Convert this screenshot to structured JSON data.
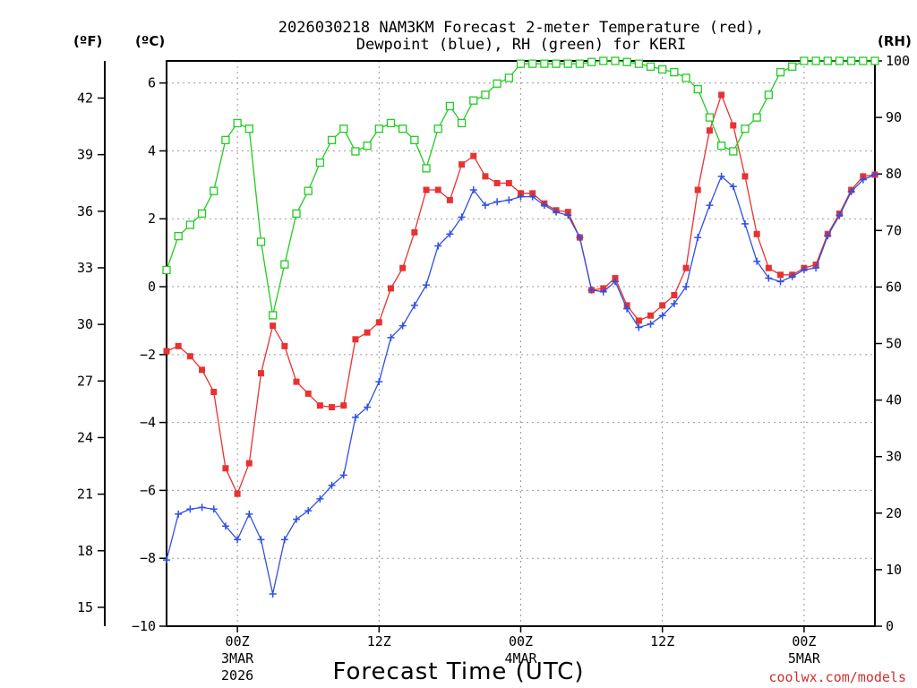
{
  "chart_data": {
    "type": "line",
    "title_line1": "2026030218 NAM3KM Forecast 2-meter Temperature (red),",
    "title_line2": "Dewpoint (blue), RH (green) for KERI",
    "xlabel": "Forecast Time (UTC)",
    "credit": "coolwx.com/models",
    "units": {
      "f": "(ºF)",
      "c": "(ºC)",
      "rh": "(RH)"
    },
    "x_hours_range": [
      -6,
      54
    ],
    "x_ticks": [
      {
        "hour": 0,
        "label": "00Z",
        "date": "3MAR",
        "year": "2026"
      },
      {
        "hour": 12,
        "label": "12Z",
        "date": "",
        "year": ""
      },
      {
        "hour": 24,
        "label": "00Z",
        "date": "4MAR",
        "year": ""
      },
      {
        "hour": 36,
        "label": "12Z",
        "date": "",
        "year": ""
      },
      {
        "hour": 48,
        "label": "00Z",
        "date": "5MAR",
        "year": ""
      }
    ],
    "c_axis": {
      "ylim": [
        -10,
        6.65
      ],
      "ticks": [
        "-10",
        "-8",
        "-6",
        "-4",
        "-2",
        "0",
        "2",
        "4",
        "6"
      ]
    },
    "f_axis": {
      "ticks": [
        "15",
        "18",
        "21",
        "24",
        "27",
        "30",
        "33",
        "36",
        "39",
        "42"
      ]
    },
    "rh_axis": {
      "ylim": [
        0,
        100
      ],
      "ticks": [
        "0",
        "10",
        "20",
        "30",
        "40",
        "50",
        "60",
        "70",
        "80",
        "90",
        "100"
      ]
    },
    "grid": true,
    "series": [
      {
        "name": "Temperature",
        "color": "#e83232",
        "marker": "filled-square",
        "x": [
          -6,
          -5,
          -4,
          -3,
          -2,
          -1,
          0,
          1,
          2,
          3,
          4,
          5,
          6,
          7,
          8,
          9,
          10,
          11,
          12,
          13,
          14,
          15,
          16,
          17,
          18,
          19,
          20,
          21,
          22,
          23,
          24,
          25,
          26,
          27,
          28,
          29,
          30,
          31,
          32,
          33,
          34,
          35,
          36,
          37,
          38,
          39,
          40,
          41,
          42,
          43,
          44,
          45,
          46,
          47,
          48,
          49,
          50,
          51,
          52,
          53,
          54
        ],
        "values": [
          -1.9,
          -1.75,
          -2.05,
          -2.45,
          -3.1,
          -5.35,
          -6.1,
          -5.2,
          -2.55,
          -1.15,
          -1.75,
          -2.8,
          -3.15,
          -3.5,
          -3.55,
          -3.5,
          -1.55,
          -1.35,
          -1.05,
          -0.05,
          0.55,
          1.6,
          2.85,
          2.85,
          2.55,
          3.6,
          3.85,
          3.25,
          3.05,
          3.05,
          2.75,
          2.75,
          2.45,
          2.25,
          2.2,
          1.45,
          -0.1,
          -0.05,
          0.25,
          -0.55,
          -1.0,
          -0.85,
          -0.55,
          -0.25,
          0.55,
          2.85,
          4.6,
          5.65,
          4.75,
          3.25,
          1.55,
          0.55,
          0.35,
          0.35,
          0.55,
          0.65,
          1.55,
          2.15,
          2.85,
          3.25,
          3.3
        ]
      },
      {
        "name": "Dewpoint",
        "color": "#3050e0",
        "marker": "plus",
        "x": [
          -6,
          -5,
          -4,
          -3,
          -2,
          -1,
          0,
          1,
          2,
          3,
          4,
          5,
          6,
          7,
          8,
          9,
          10,
          11,
          12,
          13,
          14,
          15,
          16,
          17,
          18,
          19,
          20,
          21,
          22,
          23,
          24,
          25,
          26,
          27,
          28,
          29,
          30,
          31,
          32,
          33,
          34,
          35,
          36,
          37,
          38,
          39,
          40,
          41,
          42,
          43,
          44,
          45,
          46,
          47,
          48,
          49,
          50,
          51,
          52,
          53,
          54
        ],
        "values": [
          -8.05,
          -6.7,
          -6.55,
          -6.5,
          -6.55,
          -7.05,
          -7.45,
          -6.7,
          -7.45,
          -9.05,
          -7.45,
          -6.85,
          -6.6,
          -6.25,
          -5.85,
          -5.55,
          -3.85,
          -3.55,
          -2.8,
          -1.5,
          -1.15,
          -0.55,
          0.05,
          1.2,
          1.55,
          2.05,
          2.85,
          2.4,
          2.5,
          2.55,
          2.65,
          2.65,
          2.4,
          2.2,
          2.1,
          1.45,
          -0.1,
          -0.15,
          0.15,
          -0.65,
          -1.2,
          -1.1,
          -0.85,
          -0.5,
          0.0,
          1.45,
          2.4,
          3.25,
          2.95,
          1.85,
          0.75,
          0.25,
          0.15,
          0.3,
          0.5,
          0.55,
          1.5,
          2.1,
          2.8,
          3.15,
          3.3
        ]
      },
      {
        "name": "RH",
        "color": "#22cc22",
        "marker": "open-square",
        "axis": "rh",
        "x": [
          -6,
          -5,
          -4,
          -3,
          -2,
          -1,
          0,
          1,
          2,
          3,
          4,
          5,
          6,
          7,
          8,
          9,
          10,
          11,
          12,
          13,
          14,
          15,
          16,
          17,
          18,
          19,
          20,
          21,
          22,
          23,
          24,
          25,
          26,
          27,
          28,
          29,
          30,
          31,
          32,
          33,
          34,
          35,
          36,
          37,
          38,
          39,
          40,
          41,
          42,
          43,
          44,
          45,
          46,
          47,
          48,
          49,
          50,
          51,
          52,
          53,
          54
        ],
        "values": [
          63,
          69,
          71,
          73,
          77,
          86,
          89,
          88,
          68,
          55,
          64,
          73,
          77,
          82,
          86,
          88,
          84,
          85,
          88,
          89,
          88,
          86,
          81,
          88,
          92,
          89,
          93,
          94,
          96,
          97,
          99.5,
          99.5,
          99.5,
          99.5,
          99.5,
          99.5,
          99.8,
          100,
          100,
          99.8,
          99.5,
          99,
          98.5,
          98,
          97,
          95,
          90,
          85,
          84,
          88,
          90,
          94,
          98,
          99,
          100,
          100,
          100,
          100,
          100,
          100,
          100
        ]
      }
    ]
  }
}
